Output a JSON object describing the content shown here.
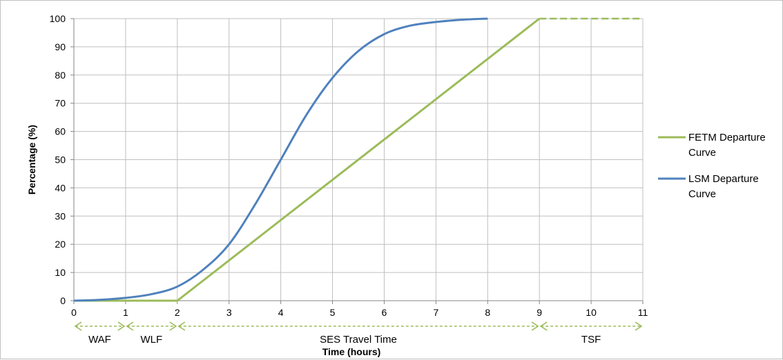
{
  "chart_data": {
    "type": "line",
    "title": "",
    "xlabel": "Time (hours)",
    "ylabel": "Percentage (%)",
    "xlim": [
      0,
      11
    ],
    "ylim": [
      0,
      100
    ],
    "x_ticks": [
      0,
      1,
      2,
      3,
      4,
      5,
      6,
      7,
      8,
      9,
      10,
      11
    ],
    "y_ticks": [
      0,
      10,
      20,
      30,
      40,
      50,
      60,
      70,
      80,
      90,
      100
    ],
    "grid": true,
    "legend_position": "right",
    "series": [
      {
        "name": "FETM Departure Curve",
        "color": "#9bbb59",
        "points": [
          [
            0,
            0
          ],
          [
            2,
            0
          ],
          [
            9,
            100
          ]
        ],
        "dashed_extension": [
          [
            9,
            100
          ],
          [
            11,
            100
          ]
        ]
      },
      {
        "name": "LSM Departure Curve",
        "color": "#4f81bd",
        "points": [
          [
            0,
            0
          ],
          [
            0.5,
            0.3
          ],
          [
            1,
            1
          ],
          [
            1.5,
            2.3
          ],
          [
            2,
            5
          ],
          [
            2.5,
            11
          ],
          [
            3,
            20
          ],
          [
            3.5,
            34
          ],
          [
            4,
            50
          ],
          [
            4.5,
            66
          ],
          [
            5,
            79
          ],
          [
            5.5,
            88.5
          ],
          [
            6,
            94.5
          ],
          [
            6.5,
            97.5
          ],
          [
            7,
            98.8
          ],
          [
            7.5,
            99.6
          ],
          [
            8,
            100
          ]
        ]
      }
    ],
    "phases": [
      {
        "label": "WAF",
        "from": 0,
        "to": 1
      },
      {
        "label": "WLF",
        "from": 1,
        "to": 2
      },
      {
        "label": "SES Travel Time",
        "from": 2,
        "to": 9
      },
      {
        "label": "TSF",
        "from": 9,
        "to": 11
      }
    ]
  }
}
